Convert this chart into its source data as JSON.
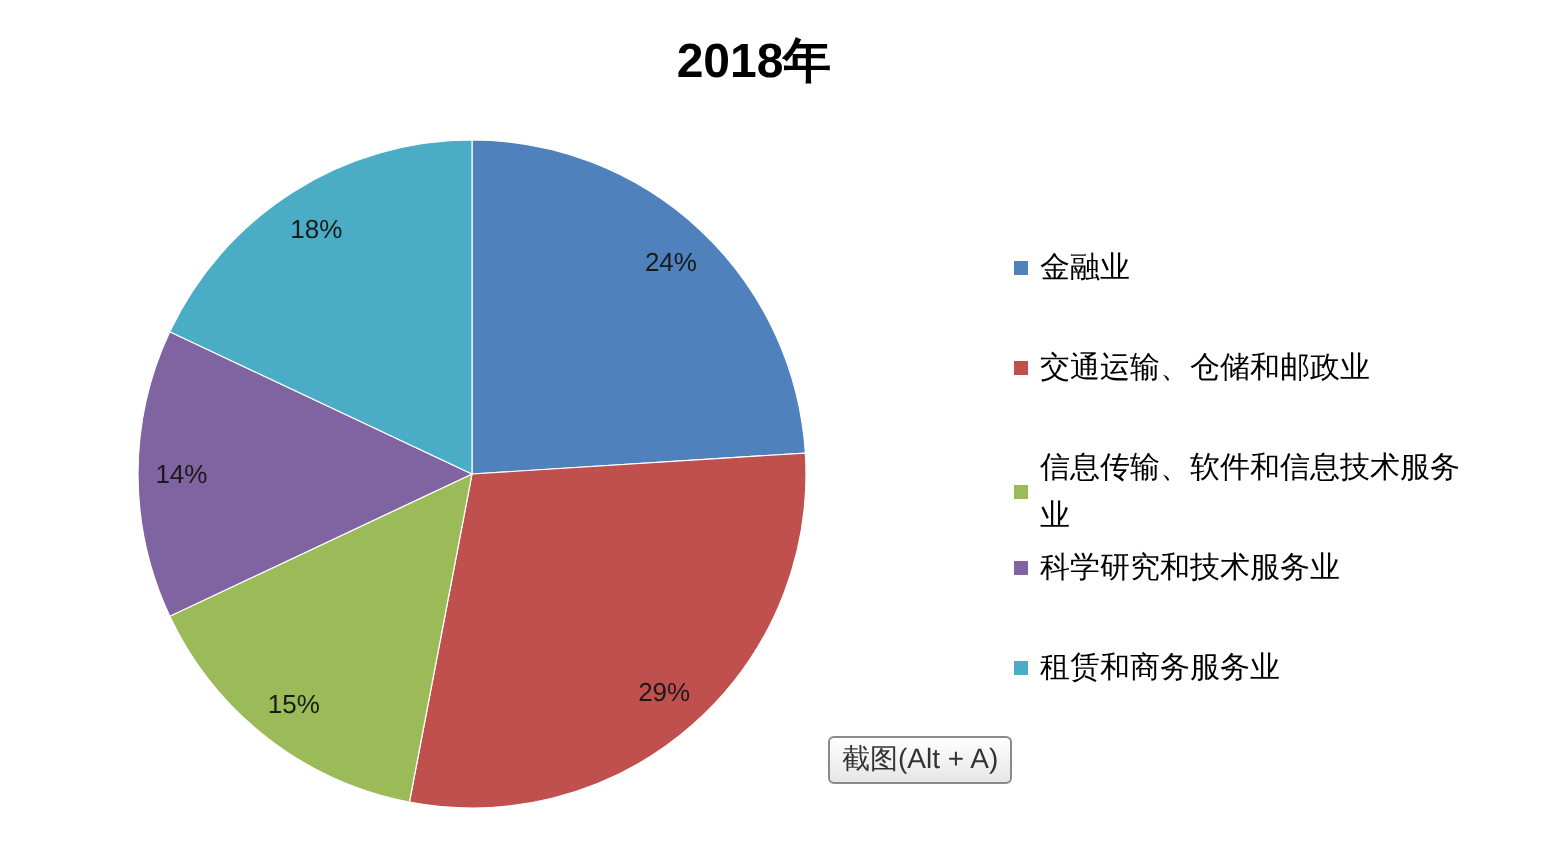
{
  "chart_data": {
    "type": "pie",
    "title": "2018年",
    "categories": [
      "金融业",
      "交通运输、仓储和邮政业",
      "信息传输、软件和信息技术服务业",
      "科学研究和技术服务业",
      "租赁和商务服务业"
    ],
    "values": [
      24,
      29,
      15,
      14,
      18
    ],
    "colors": [
      "#4f81bd",
      "#c0504d",
      "#9bbb59",
      "#8064a2",
      "#4bacc6"
    ],
    "value_labels": [
      "24%",
      "29%",
      "15%",
      "14%",
      "18%"
    ],
    "legend": "right",
    "annotations": [
      "截图(Alt + A)"
    ]
  }
}
